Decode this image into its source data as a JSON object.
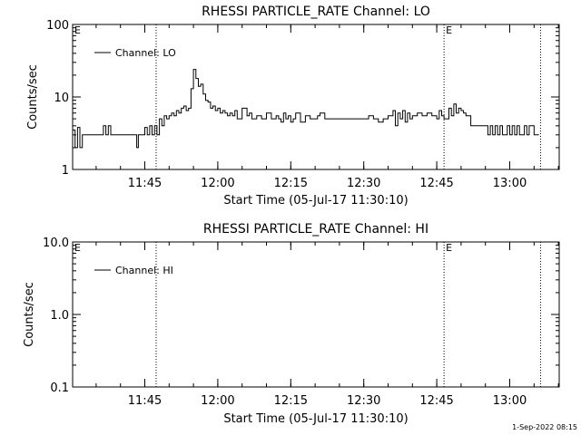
{
  "timestamp": "1-Sep-2022 08:15",
  "chart_data": [
    {
      "type": "line",
      "title": "RHESSI PARTICLE_RATE Channel: LO",
      "xlabel": "Start Time (05-Jul-17 11:30:10)",
      "ylabel": "Counts/sec",
      "yscale": "log",
      "ylim": [
        1,
        100
      ],
      "yticks": [
        "1",
        "10",
        "100"
      ],
      "xticks": [
        "11:45",
        "12:00",
        "12:15",
        "12:30",
        "12:45",
        "13:00"
      ],
      "xlim": [
        "11:30:10",
        "13:10:10"
      ],
      "legend": "Channel: LO",
      "legend_position": "top-left",
      "markers": [
        {
          "label": "E",
          "time": "11:30:10"
        },
        {
          "label": "E",
          "time": "12:46:30"
        }
      ],
      "vlines": [
        "11:47:20",
        "12:46:30",
        "13:06:20"
      ],
      "series": [
        {
          "name": "Channel: LO",
          "x": [
            "11:30:10",
            "11:30:40",
            "11:31:10",
            "11:31:40",
            "11:32:10",
            "11:33:00",
            "11:34:00",
            "11:35:00",
            "11:36:00",
            "11:36:30",
            "11:37:00",
            "11:37:30",
            "11:38:00",
            "11:39:00",
            "11:40:00",
            "11:41:00",
            "11:42:00",
            "11:43:00",
            "11:43:20",
            "11:43:40",
            "11:44:00",
            "11:44:20",
            "11:45:00",
            "11:45:30",
            "11:46:00",
            "11:46:30",
            "11:47:00",
            "11:47:30",
            "11:48:00",
            "11:48:30",
            "11:49:00",
            "11:49:30",
            "11:50:00",
            "11:50:30",
            "11:51:00",
            "11:51:30",
            "11:52:00",
            "11:52:30",
            "11:53:00",
            "11:53:30",
            "11:54:00",
            "11:54:30",
            "11:55:00",
            "11:55:30",
            "11:56:00",
            "11:56:30",
            "11:57:00",
            "11:57:30",
            "11:58:00",
            "11:58:30",
            "11:59:00",
            "11:59:30",
            "12:00:00",
            "12:00:30",
            "12:01:00",
            "12:01:30",
            "12:02:00",
            "12:02:30",
            "12:03:00",
            "12:03:30",
            "12:04:00",
            "12:05:00",
            "12:06:00",
            "12:06:30",
            "12:07:00",
            "12:08:00",
            "12:09:00",
            "12:10:00",
            "12:11:00",
            "12:12:00",
            "12:12:30",
            "12:13:00",
            "12:13:30",
            "12:14:00",
            "12:14:30",
            "12:15:00",
            "12:15:30",
            "12:16:00",
            "12:17:00",
            "12:18:00",
            "12:19:00",
            "12:19:30",
            "12:20:00",
            "12:20:30",
            "12:21:00",
            "12:22:00",
            "12:23:00",
            "12:24:00",
            "12:25:00",
            "12:26:00",
            "12:27:00",
            "12:28:00",
            "12:29:00",
            "12:30:00",
            "12:31:00",
            "12:32:00",
            "12:33:00",
            "12:34:00",
            "12:35:00",
            "12:36:00",
            "12:36:30",
            "12:37:00",
            "12:37:30",
            "12:38:00",
            "12:38:30",
            "12:39:00",
            "12:39:30",
            "12:40:00",
            "12:41:00",
            "12:42:00",
            "12:43:00",
            "12:44:00",
            "12:45:00",
            "12:45:30",
            "12:46:00",
            "12:46:30",
            "12:47:00",
            "12:47:30",
            "12:48:00",
            "12:48:30",
            "12:49:00",
            "12:49:30",
            "12:50:00",
            "12:50:30",
            "12:51:00",
            "12:52:00",
            "12:53:00",
            "12:54:00",
            "12:55:00",
            "12:55:30",
            "12:56:00",
            "12:56:30",
            "12:57:00",
            "12:57:30",
            "12:58:00",
            "12:58:30",
            "12:59:00",
            "12:59:30",
            "13:00:00",
            "13:00:30",
            "13:01:00",
            "13:01:30",
            "13:02:00",
            "13:02:30",
            "13:03:00",
            "13:03:30",
            "13:04:00",
            "13:05:00",
            "13:06:00"
          ],
          "values": [
            3.5,
            2.0,
            3.8,
            2.0,
            3.0,
            3.0,
            3.0,
            3.0,
            3.0,
            4.0,
            3.0,
            4.0,
            3.0,
            3.0,
            3.0,
            3.0,
            3.0,
            3.0,
            2.0,
            3.0,
            3.0,
            3.0,
            3.8,
            3.0,
            4.0,
            3.0,
            4.0,
            3.0,
            5.0,
            4.0,
            5.5,
            5.0,
            5.5,
            6.0,
            5.5,
            6.5,
            6.0,
            7.0,
            7.5,
            6.5,
            7.0,
            13.0,
            24.0,
            18.0,
            14.0,
            15.0,
            11.0,
            9.0,
            8.5,
            7.0,
            7.5,
            6.5,
            7.0,
            6.0,
            6.5,
            6.0,
            5.5,
            6.0,
            5.5,
            6.5,
            5.0,
            7.0,
            5.5,
            6.0,
            5.0,
            5.5,
            5.0,
            6.0,
            5.0,
            5.5,
            5.0,
            4.5,
            6.0,
            5.0,
            5.5,
            4.5,
            5.0,
            6.0,
            4.5,
            5.5,
            5.0,
            5.0,
            5.0,
            5.5,
            6.0,
            5.0,
            5.0,
            5.0,
            5.0,
            5.0,
            5.0,
            5.0,
            5.0,
            5.0,
            5.5,
            5.0,
            4.5,
            5.0,
            5.5,
            6.5,
            4.0,
            6.0,
            5.0,
            6.5,
            4.5,
            6.0,
            5.0,
            5.5,
            6.0,
            5.5,
            6.0,
            5.5,
            5.0,
            6.5,
            5.5,
            5.0,
            5.0,
            7.0,
            5.5,
            8.0,
            6.0,
            7.0,
            6.5,
            6.0,
            5.5,
            4.0,
            4.0,
            4.0,
            4.0,
            3.0,
            4.0,
            3.0,
            4.0,
            3.0,
            4.0,
            3.0,
            3.0,
            4.0,
            3.0,
            4.0,
            3.0,
            4.0,
            3.0,
            3.0,
            4.0,
            3.0,
            4.0,
            3.0,
            3.0
          ]
        }
      ]
    },
    {
      "type": "line",
      "title": "RHESSI PARTICLE_RATE Channel: HI",
      "xlabel": "Start Time (05-Jul-17 11:30:10)",
      "ylabel": "Counts/sec",
      "yscale": "log",
      "ylim": [
        0.1,
        10
      ],
      "yticks": [
        "0.1",
        "1.0",
        "10.0"
      ],
      "xticks": [
        "11:45",
        "12:00",
        "12:15",
        "12:30",
        "12:45",
        "13:00"
      ],
      "xlim": [
        "11:30:10",
        "13:10:10"
      ],
      "legend": "Channel: HI",
      "legend_position": "top-left",
      "markers": [
        {
          "label": "E",
          "time": "11:30:10"
        },
        {
          "label": "E",
          "time": "12:46:30"
        }
      ],
      "vlines": [
        "11:47:20",
        "12:46:30",
        "13:06:20"
      ],
      "series": [
        {
          "name": "Channel: HI",
          "x": [],
          "values": []
        }
      ]
    }
  ]
}
